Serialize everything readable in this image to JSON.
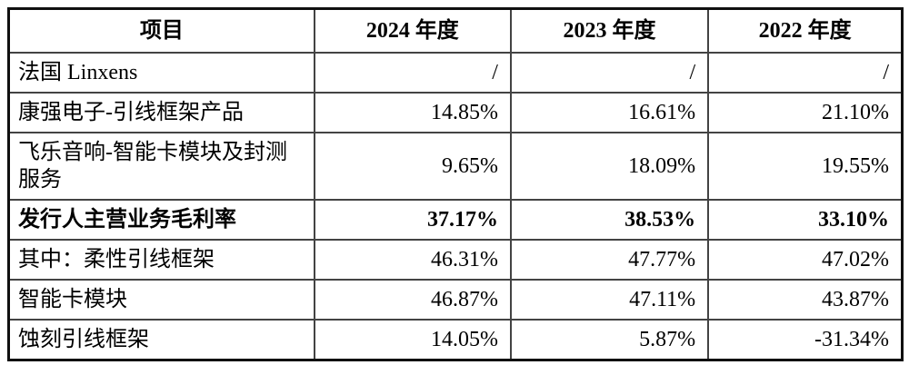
{
  "table": {
    "columns": [
      "项目",
      "2024 年度",
      "2023 年度",
      "2022 年度"
    ],
    "rows": [
      {
        "label": "法国 Linxens",
        "values": [
          "/",
          "/",
          "/"
        ],
        "bold": false
      },
      {
        "label": "康强电子-引线框架产品",
        "values": [
          "14.85%",
          "16.61%",
          "21.10%"
        ],
        "bold": false
      },
      {
        "label": "飞乐音响-智能卡模块及封测服务",
        "values": [
          "9.65%",
          "18.09%",
          "19.55%"
        ],
        "bold": false
      },
      {
        "label": "发行人主营业务毛利率",
        "values": [
          "37.17%",
          "38.53%",
          "33.10%"
        ],
        "bold": true
      },
      {
        "label": "其中：柔性引线框架",
        "values": [
          "46.31%",
          "47.77%",
          "47.02%"
        ],
        "bold": false
      },
      {
        "label": "智能卡模块",
        "values": [
          "46.87%",
          "47.11%",
          "43.87%"
        ],
        "bold": false
      },
      {
        "label": "蚀刻引线框架",
        "values": [
          "14.05%",
          "5.87%",
          "-31.34%"
        ],
        "bold": false
      }
    ]
  },
  "colors": {
    "background": "#ffffff",
    "outer_border": "#101010",
    "grid_border": "#434343",
    "text": "#000000"
  }
}
